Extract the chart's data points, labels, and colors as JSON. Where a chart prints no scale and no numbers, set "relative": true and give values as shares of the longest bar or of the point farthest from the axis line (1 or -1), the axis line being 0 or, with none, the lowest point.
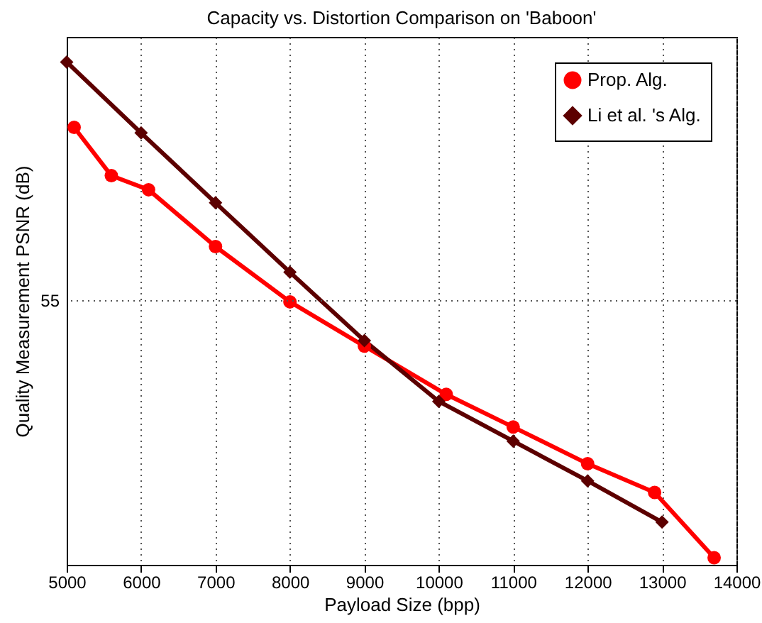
{
  "chart_data": {
    "type": "line",
    "title": "Capacity vs. Distortion Comparison on 'Baboon'",
    "xlabel": "Payload Size (bpp)",
    "ylabel": "Quality Measurement PSNR (dB)",
    "relative": true,
    "xlim": [
      5000,
      14000
    ],
    "xticks": [
      5000,
      6000,
      7000,
      8000,
      9000,
      10000,
      11000,
      12000,
      13000,
      14000
    ],
    "annotations": [
      "55"
    ],
    "grid": true,
    "legend": "top right",
    "series": [
      {
        "name": "Prop. Alg.",
        "color": "#ff0000",
        "marker": "circle",
        "x": [
          5100,
          5600,
          6100,
          7000,
          8000,
          9000,
          10100,
          11000,
          12000,
          12900,
          13700
        ],
        "values": [
          0.87,
          0.774,
          0.746,
          0.633,
          0.523,
          0.435,
          0.339,
          0.274,
          0.201,
          0.144,
          0.014
        ]
      },
      {
        "name": "Li et al. 's Alg.",
        "color": "#5c0000",
        "marker": "diamond",
        "x": [
          5000,
          6000,
          7000,
          8000,
          9000,
          10000,
          11000,
          12000,
          13000
        ],
        "values": [
          1,
          0.859,
          0.72,
          0.582,
          0.446,
          0.325,
          0.246,
          0.167,
          0.085
        ]
      }
    ]
  }
}
